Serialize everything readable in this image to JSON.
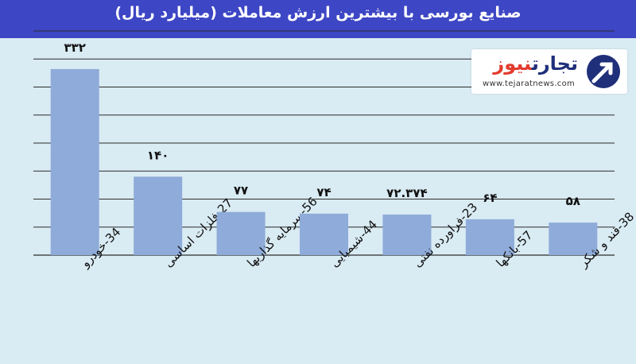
{
  "title": "صنایع بورسی با بیشترین ارزش معاملات  (میلیارد ریال)",
  "logo": {
    "name_dark": "تجارت",
    "name_accent": "نیوز",
    "url": "www.tejaratnews.com",
    "icon": "arrow-circle-logo"
  },
  "colors": {
    "bar": "#8eabd9",
    "header": "#3d46c4",
    "background": "#d9ebf3",
    "grid": "#2c2c2c"
  },
  "chart_data": {
    "type": "bar",
    "title": "صنایع بورسی با بیشترین ارزش معاملات  (میلیارد ریال)",
    "categories": [
      "34-خودرو",
      "27-فلزات اساسی",
      "56-سرمایه گذاریها",
      "44-شیمیایی",
      "23-فراورده نفتی",
      "57-بانکها",
      "38-قند و شکر"
    ],
    "values": [
      332,
      140,
      77,
      74,
      72.374,
      64,
      58
    ],
    "data_labels": [
      "۳۳۲",
      "۱۴۰",
      "۷۷",
      "۷۴",
      "۷۲.۳۷۴",
      "۶۴",
      "۵۸"
    ],
    "ylim": [
      0,
      400
    ],
    "grid": true,
    "legend": "none"
  }
}
